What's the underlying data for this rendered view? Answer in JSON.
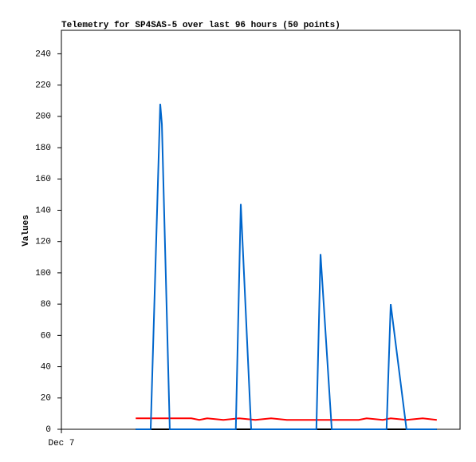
{
  "chart_data": {
    "type": "line",
    "title": "Telemetry for SP4SAS-5 over last 96 hours (50 points)",
    "y_label": "Values",
    "xlim": [
      0,
      96
    ],
    "xticks": [
      {
        "value": 0,
        "label": "Dec 7"
      }
    ],
    "ylim": [
      0,
      255
    ],
    "yticks": [
      0,
      20,
      40,
      60,
      80,
      100,
      120,
      140,
      160,
      180,
      200,
      220,
      240
    ],
    "grid": false,
    "series": [
      {
        "color": "#000000",
        "x": [
          17.9,
          90.4
        ],
        "values": [
          0,
          0
        ]
      },
      {
        "color": "#ff0000",
        "x": [
          17.9,
          31.3,
          33.2,
          35.1,
          39.0,
          42.8,
          46.7,
          50.5,
          54.3,
          71.6,
          73.5,
          77.4,
          79.3,
          83.1,
          87.0,
          90.4
        ],
        "values": [
          7,
          7,
          6,
          7,
          6,
          7,
          6,
          7,
          6,
          6,
          7,
          6,
          7,
          6,
          7,
          6
        ]
      },
      {
        "color": "#0066cc",
        "x": [
          17.9,
          21.5,
          23.8,
          24.2,
          26.1,
          42.0,
          43.2,
          45.7,
          61.4,
          62.4,
          65.1,
          78.3,
          79.3,
          83.1,
          90.4
        ],
        "values": [
          0,
          0,
          208,
          195,
          0,
          0,
          144,
          0,
          0,
          112,
          0,
          0,
          80,
          0,
          0
        ]
      }
    ]
  }
}
